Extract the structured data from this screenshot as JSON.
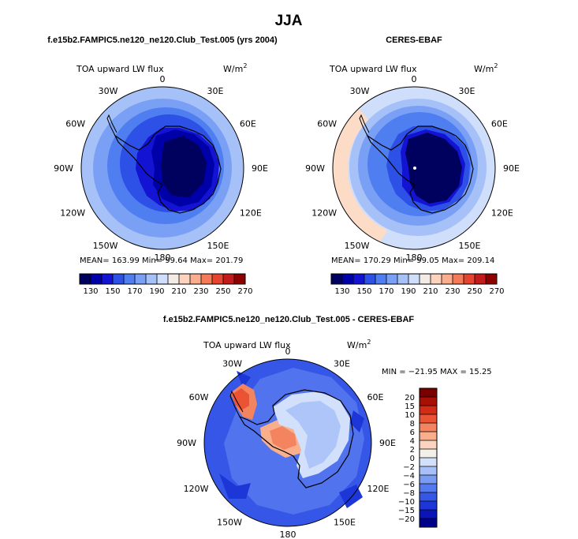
{
  "figure": {
    "title": "JJA",
    "panels": [
      {
        "id": "model",
        "subtitle": "f.e15b2.FAMPIC5.ne120_ne120.Club_Test.005 (yrs 2004)",
        "left_label": "TOA upward LW flux",
        "units_main": "W/m",
        "units_exp": "2",
        "stats": "MEAN= 163.99    Min=  99.64    Max= 201.79"
      },
      {
        "id": "obs",
        "subtitle": "CERES-EBAF",
        "left_label": "TOA upward LW flux",
        "units_main": "W/m",
        "units_exp": "2",
        "stats": "MEAN= 170.29    Min=  99.05    Max= 209.14"
      },
      {
        "id": "diff",
        "subtitle": "f.e15b2.FAMPIC5.ne120_ne120.Club_Test.005 - CERES-EBAF",
        "left_label": "TOA upward LW flux",
        "units_main": "W/m",
        "units_exp": "2",
        "stats": "MIN = −21.95  MAX =  15.25"
      }
    ],
    "longitude_labels": [
      "0",
      "30E",
      "60E",
      "90E",
      "120E",
      "150E",
      "180",
      "150W",
      "120W",
      "90W",
      "60W",
      "30W"
    ]
  },
  "chart_data": [
    {
      "type": "heatmap",
      "projection": "south-polar-stereographic",
      "title": "f.e15b2.FAMPIC5.ne120_ne120.Club_Test.005 (yrs 2004)",
      "variable": "TOA upward LW flux",
      "units": "W/m2",
      "mean": 163.99,
      "min": 99.64,
      "max": 201.79,
      "colorbar_levels": [
        130,
        140,
        150,
        160,
        170,
        180,
        190,
        200,
        210,
        220,
        230,
        240,
        250,
        260,
        270
      ],
      "colorbar_tick_labels": [
        "130",
        "150",
        "170",
        "190",
        "210",
        "230",
        "250",
        "270"
      ],
      "colorbar_colors": [
        "#00005f",
        "#0000a8",
        "#1313d4",
        "#2d50e6",
        "#4f7ef0",
        "#7aa0f5",
        "#a6c0f8",
        "#cfdffb",
        "#f3ece6",
        "#fcd3bf",
        "#faae8e",
        "#f47a58",
        "#e5452e",
        "#c31a1a",
        "#8c0000"
      ]
    },
    {
      "type": "heatmap",
      "projection": "south-polar-stereographic",
      "title": "CERES-EBAF",
      "variable": "TOA upward LW flux",
      "units": "W/m2",
      "mean": 170.29,
      "min": 99.05,
      "max": 209.14,
      "colorbar_levels": [
        130,
        140,
        150,
        160,
        170,
        180,
        190,
        200,
        210,
        220,
        230,
        240,
        250,
        260,
        270
      ],
      "colorbar_tick_labels": [
        "130",
        "150",
        "170",
        "190",
        "210",
        "230",
        "250",
        "270"
      ],
      "colorbar_colors": [
        "#00005f",
        "#0000a8",
        "#1313d4",
        "#2d50e6",
        "#4f7ef0",
        "#7aa0f5",
        "#a6c0f8",
        "#cfdffb",
        "#f3ece6",
        "#fcd3bf",
        "#faae8e",
        "#f47a58",
        "#e5452e",
        "#c31a1a",
        "#8c0000"
      ]
    },
    {
      "type": "heatmap",
      "projection": "south-polar-stereographic",
      "title": "f.e15b2.FAMPIC5.ne120_ne120.Club_Test.005 - CERES-EBAF",
      "variable": "TOA upward LW flux",
      "units": "W/m2",
      "min": -21.95,
      "max": 15.25,
      "colorbar_levels": [
        -20,
        -15,
        -10,
        -8,
        -6,
        -4,
        -2,
        0,
        2,
        4,
        6,
        8,
        10,
        15,
        20
      ],
      "colorbar_tick_labels": [
        "−20",
        "−15",
        "−10",
        "−8",
        "−6",
        "−4",
        "−2",
        "0",
        "2",
        "4",
        "6",
        "8",
        "10",
        "15",
        "20"
      ],
      "colorbar_colors": [
        "#00008a",
        "#0a14b8",
        "#1d36d8",
        "#3556e6",
        "#5478ee",
        "#7a9bf4",
        "#a7c0f8",
        "#d2e0fb",
        "#f3efe9",
        "#fbd4bf",
        "#f9ae8c",
        "#f48360",
        "#ea5434",
        "#d42b16",
        "#a81006",
        "#7a0000"
      ]
    }
  ]
}
